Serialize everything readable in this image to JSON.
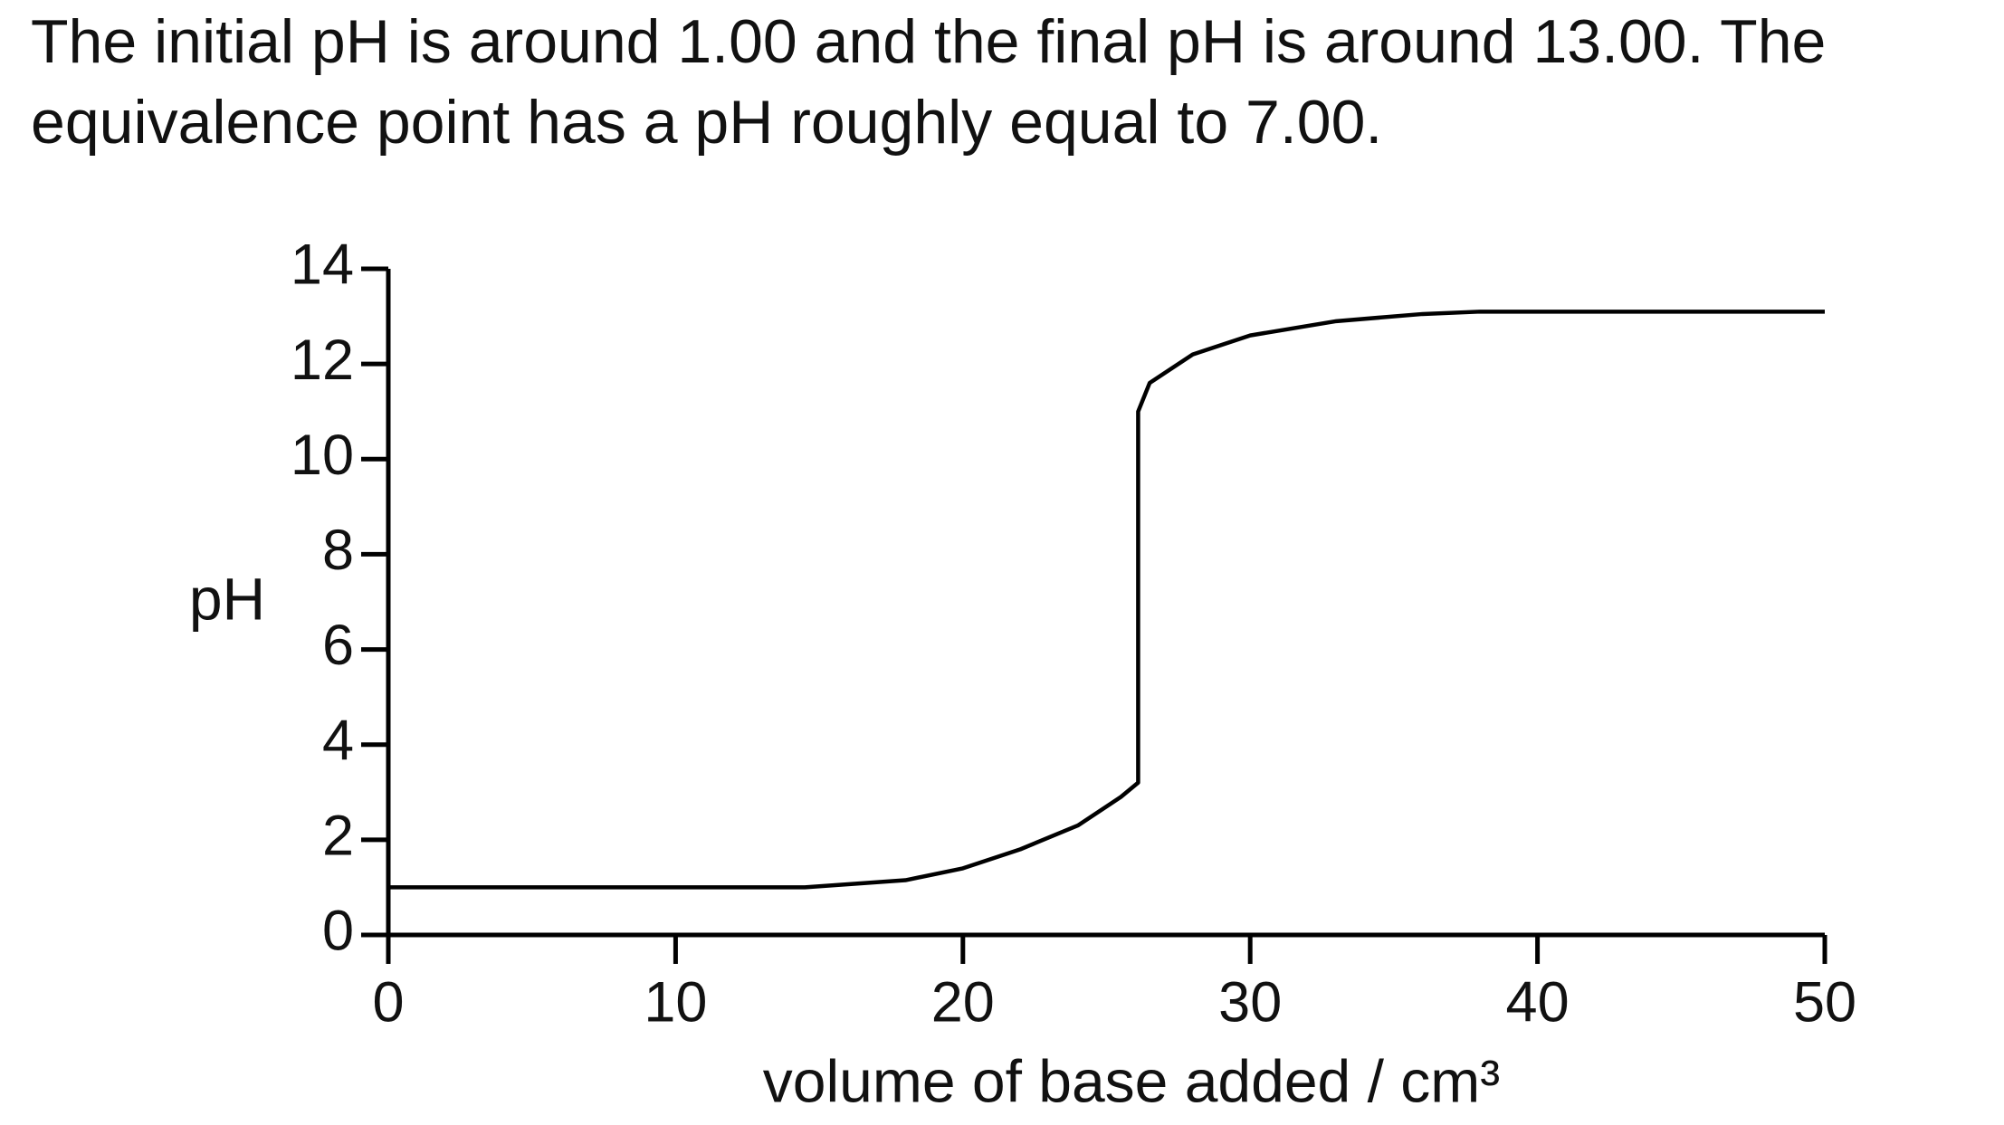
{
  "paragraph": "The initial pH is around 1.00 and the final pH is around 13.00. The equivalence point has a pH roughly equal to 7.00.",
  "chart_data": {
    "type": "line",
    "xlabel": "volume of base added / cm³",
    "ylabel": "pH",
    "x": [
      0,
      5,
      10,
      14.5,
      18,
      20,
      22,
      24,
      25.5,
      26.1,
      26.1,
      26.5,
      28,
      30,
      33,
      36,
      38,
      45,
      50
    ],
    "series": [
      {
        "color": "#000000",
        "values": [
          1.0,
          1.0,
          1.0,
          1.0,
          1.15,
          1.4,
          1.8,
          2.3,
          2.9,
          3.2,
          11.0,
          11.6,
          12.2,
          12.6,
          12.9,
          13.05,
          13.1,
          13.1,
          13.1
        ]
      }
    ],
    "xlim": [
      0,
      50
    ],
    "xticks": [
      0,
      10,
      20,
      30,
      40,
      50
    ],
    "ylim": [
      0,
      14
    ],
    "yticks": [
      0,
      2,
      4,
      6,
      8,
      10,
      12,
      14
    ]
  }
}
